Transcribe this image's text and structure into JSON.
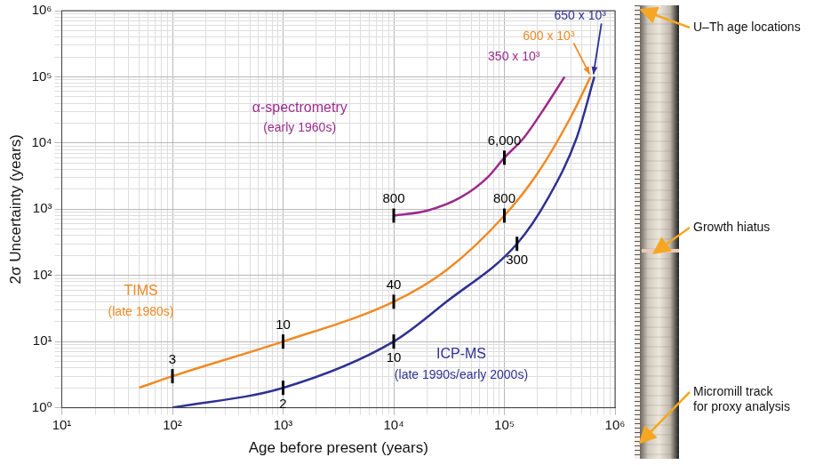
{
  "chart_data": {
    "type": "line",
    "log": true,
    "grid": true,
    "tick_labels": true,
    "x_label": "Age before present (years)",
    "y_label": "2σ Uncertainty (years)",
    "xlim": [
      10,
      1000000
    ],
    "ylim": [
      1,
      1000000
    ],
    "xticks": [
      {
        "value": 10,
        "label": "10¹"
      },
      {
        "value": 100,
        "label": "10²"
      },
      {
        "value": 1000,
        "label": "10³"
      },
      {
        "value": 10000,
        "label": "10⁴"
      },
      {
        "value": 100000,
        "label": "10⁵"
      },
      {
        "value": 1000000,
        "label": "10⁶"
      }
    ],
    "yticks": [
      {
        "value": 1,
        "label": "10⁰"
      },
      {
        "value": 10,
        "label": "10¹"
      },
      {
        "value": 100,
        "label": "10²"
      },
      {
        "value": 1000,
        "label": "10³"
      },
      {
        "value": 10000,
        "label": "10⁴"
      },
      {
        "value": 100000,
        "label": "10⁵"
      },
      {
        "value": 1000000,
        "label": "10⁶"
      }
    ],
    "series": [
      {
        "name": "α-spectrometry",
        "period": "(early 1960s)",
        "color": "#9c2a8c",
        "x": [
          10000,
          20000,
          40000,
          70000,
          100000,
          150000,
          220000,
          350000
        ],
        "values": [
          800,
          950,
          1500,
          3000,
          6000,
          12000,
          30000,
          100000
        ],
        "marked": [
          {
            "x": 10000,
            "y": 800,
            "label": "800"
          },
          {
            "x": 100000,
            "y": 6000,
            "label": "6,000"
          }
        ],
        "age_limit": {
          "value": 350000,
          "label": "350 x 10³"
        }
      },
      {
        "name": "TIMS",
        "period": "(late 1980s)",
        "color": "#f08a24",
        "x": [
          50,
          100,
          1000,
          10000,
          30000,
          100000,
          200000,
          400000,
          600000
        ],
        "values": [
          2,
          3,
          10,
          40,
          120,
          800,
          3500,
          25000,
          100000
        ],
        "marked": [
          {
            "x": 100,
            "y": 3,
            "label": "3"
          },
          {
            "x": 1000,
            "y": 10,
            "label": "10"
          },
          {
            "x": 10000,
            "y": 40,
            "label": "40"
          },
          {
            "x": 100000,
            "y": 800,
            "label": "800"
          }
        ],
        "age_limit": {
          "value": 600000,
          "label": "600 x 10³"
        }
      },
      {
        "name": "ICP-MS",
        "period": "(late 1990s/early 2000s)",
        "color": "#2e3192",
        "x": [
          100,
          1000,
          10000,
          30000,
          130000,
          250000,
          450000,
          650000
        ],
        "values": [
          1,
          2,
          10,
          40,
          300,
          1500,
          12000,
          100000
        ],
        "marked": [
          {
            "x": 1000,
            "y": 2,
            "label": "2"
          },
          {
            "x": 10000,
            "y": 10,
            "label": "10"
          },
          {
            "x": 130000,
            "y": 300,
            "label": "300"
          }
        ],
        "age_limit": {
          "value": 650000,
          "label": "650 x 10³"
        }
      }
    ]
  },
  "photo": {
    "labels": [
      "U–Th age locations",
      "Growth hiatus",
      "Micromill track for proxy analysis"
    ]
  }
}
